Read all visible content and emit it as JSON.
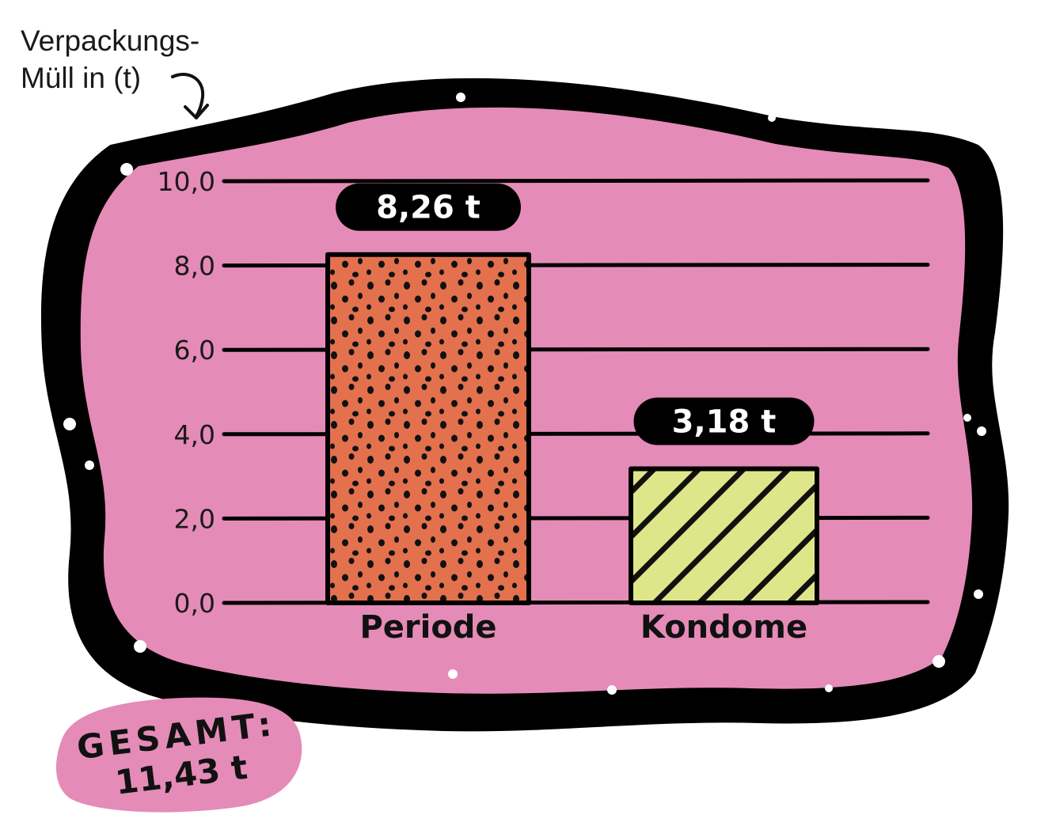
{
  "chart_data": {
    "type": "bar",
    "ylabel": [
      "Verpackungs-",
      "Müll in (t)"
    ],
    "categories": [
      "Periode",
      "Kondome"
    ],
    "values": [
      8.26,
      3.18
    ],
    "value_labels": [
      "8,26 t",
      "3,18 t"
    ],
    "yticks": [
      "0,0",
      "2,0",
      "4,0",
      "6,0",
      "8,0",
      "10,0"
    ],
    "ylim": [
      0,
      10
    ],
    "grid": true,
    "total_label": "GESAMT:",
    "total_value": "11,43 t"
  },
  "colors": {
    "panel": "#e58bb8",
    "frame": "#000000",
    "periode_fill": "#e3714e",
    "kondome_fill": "#dfe68a",
    "gesamt_blob": "#e58bb8"
  }
}
